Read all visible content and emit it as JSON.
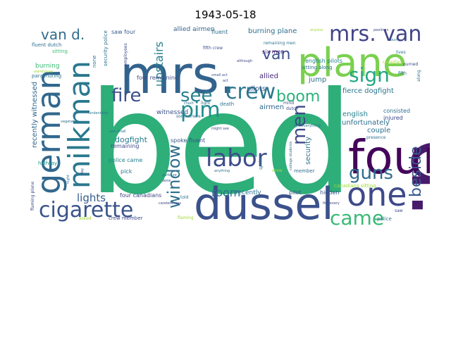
{
  "figure": {
    "title": "1943-05-18"
  },
  "word_cloud": {
    "background": "#ffffff",
    "words": [
      {
        "text": "bed",
        "color": "#2eae79"
      },
      {
        "text": "mrs.",
        "color": "#33638d"
      },
      {
        "text": "d.",
        "color": "#481a6c"
      },
      {
        "text": "plane",
        "color": "#7bd04f"
      },
      {
        "text": "dussel",
        "color": "#3b518b"
      },
      {
        "text": "four",
        "color": "#44055a"
      },
      {
        "text": "german",
        "color": "#31688e"
      },
      {
        "text": "milkman",
        "color": "#2a788e"
      },
      {
        "text": "cigarette",
        "color": "#39548b"
      },
      {
        "text": "one",
        "color": "#3e4a89"
      },
      {
        "text": "crew",
        "color": "#2a778e"
      },
      {
        "text": "pim",
        "color": "#228c8d"
      },
      {
        "text": "fire",
        "color": "#3c4f8a"
      },
      {
        "text": "see",
        "color": "#27808e"
      },
      {
        "text": "labor",
        "color": "#3e4c8a"
      },
      {
        "text": "mrs. van",
        "color": "#414487"
      },
      {
        "text": "sign",
        "color": "#22a785"
      },
      {
        "text": "window",
        "color": "#2e6e8e"
      },
      {
        "text": "van d.",
        "color": "#2f6b8e"
      },
      {
        "text": "boom",
        "color": "#2cb17e"
      },
      {
        "text": "van",
        "color": "#3b528b"
      },
      {
        "text": "men",
        "color": "#3e4a89"
      },
      {
        "text": "guns",
        "color": "#2f6c8e"
      },
      {
        "text": "came",
        "color": "#3aba76"
      },
      {
        "text": "beside",
        "color": "#38598c"
      },
      {
        "text": "upstairs",
        "color": "#277f8e"
      },
      {
        "text": "lights",
        "color": "#355f8d"
      },
      {
        "text": "room",
        "color": "#2c728e"
      },
      {
        "text": "dogfight",
        "color": "#297b8e"
      },
      {
        "text": "fierce dogfight",
        "color": "#2b758e"
      },
      {
        "text": "recently witnessed",
        "color": "#31668e"
      },
      {
        "text": "allied airmen",
        "color": "#34608d"
      },
      {
        "text": "burning plane",
        "color": "#2d708e"
      },
      {
        "text": "saw four",
        "color": "#375a8c"
      },
      {
        "text": "witnessed",
        "color": "#3b528b"
      },
      {
        "text": "unfortunately",
        "color": "#2d708e"
      },
      {
        "text": "english",
        "color": "#26828e"
      },
      {
        "text": "couple",
        "color": "#2c728e"
      },
      {
        "text": "consisted",
        "color": "#2e6e8e"
      },
      {
        "text": "injured",
        "color": "#3e4a89"
      },
      {
        "text": "allied",
        "color": "#472a7a"
      },
      {
        "text": "jump",
        "color": "#2c718e"
      },
      {
        "text": "pilots",
        "color": "#375b8d"
      },
      {
        "text": "airmen",
        "color": "#31688e"
      },
      {
        "text": "security",
        "color": "#2c728e"
      },
      {
        "text": "english pilots",
        "color": "#26828e"
      },
      {
        "text": "six men",
        "color": "#482576"
      },
      {
        "text": "fluent dutch",
        "color": "#2d708e"
      },
      {
        "text": "sitting",
        "color": "#3fbc73"
      },
      {
        "text": "parachuting",
        "color": "#2d708e"
      },
      {
        "text": "burning",
        "color": "#3bbb75"
      },
      {
        "text": "four remaining",
        "color": "#3e4c8a"
      },
      {
        "text": "spoke fluent",
        "color": "#39558c"
      },
      {
        "text": "remaining",
        "color": "#3e4a89"
      },
      {
        "text": "police came",
        "color": "#26828e"
      },
      {
        "text": "pick",
        "color": "#2b758e"
      },
      {
        "text": "four canadians",
        "color": "#414487"
      },
      {
        "text": "recently",
        "color": "#2c728e"
      },
      {
        "text": "pilot",
        "color": "#3b528b"
      },
      {
        "text": "hidden",
        "color": "#3b528b"
      },
      {
        "text": "member",
        "color": "#2d708e"
      },
      {
        "text": "halfway",
        "color": "#1f948c"
      },
      {
        "text": "flaming plane",
        "color": "#3e4a89"
      },
      {
        "text": "crew member",
        "color": "#3e4a89"
      },
      {
        "text": "police",
        "color": "#2c728e"
      },
      {
        "text": "saw",
        "color": "#3e4a89"
      },
      {
        "text": "fluent",
        "color": "#2d708e"
      },
      {
        "text": "fifth crew",
        "color": "#3b528b"
      },
      {
        "text": "security police",
        "color": "#2c728e"
      },
      {
        "text": "none",
        "color": "#2d708e"
      },
      {
        "text": "sitting along",
        "color": "#2c728e"
      },
      {
        "text": "canadians sitting",
        "color": "#a0da39"
      },
      {
        "text": "death",
        "color": "#2c728e"
      },
      {
        "text": "light",
        "color": "#2d708e"
      },
      {
        "text": "mind",
        "color": "#3b528b"
      },
      {
        "text": "dutch",
        "color": "#3e4a89"
      },
      {
        "text": "told",
        "color": "#2c728e"
      },
      {
        "text": "fifth",
        "color": "#2d708e"
      },
      {
        "text": "lives",
        "color": "#2c728e"
      },
      {
        "text": "burned",
        "color": "#3e4a89"
      },
      {
        "text": "along",
        "color": "#2c728e"
      },
      {
        "text": "somewhere",
        "color": "#2d708e"
      },
      {
        "text": "presence",
        "color": "#2c728e"
      },
      {
        "text": "canadians",
        "color": "#a0da39"
      },
      {
        "text": "remaining men",
        "color": "#2c728e"
      },
      {
        "text": "employees",
        "color": "#3e4a89"
      },
      {
        "text": "night",
        "color": "#2c728e"
      },
      {
        "text": "small act",
        "color": "#3b528b"
      },
      {
        "text": "fire every",
        "color": "#3e4a89"
      },
      {
        "text": "anything",
        "color": "#2c728e"
      },
      {
        "text": "drew",
        "color": "#a0da39"
      },
      {
        "text": "done",
        "color": "#3e4a89"
      },
      {
        "text": "spoke",
        "color": "#2c728e"
      },
      {
        "text": "carelessness",
        "color": "#3e4a89"
      },
      {
        "text": "asked",
        "color": "#a0da39"
      },
      {
        "text": "flaming",
        "color": "#a0da39"
      },
      {
        "text": "crash",
        "color": "#2c728e"
      },
      {
        "text": "although",
        "color": "#3e4a89"
      },
      {
        "text": "vegetable",
        "color": "#2c728e"
      },
      {
        "text": "peelings",
        "color": "#3e4a89"
      },
      {
        "text": "garbage",
        "color": "#2c728e"
      },
      {
        "text": "warehouse",
        "color": "#a0da39"
      },
      {
        "text": "undeniably",
        "color": "#2c728e"
      },
      {
        "text": "college students",
        "color": "#2d708e"
      },
      {
        "text": "might see",
        "color": "#3e4a89"
      },
      {
        "text": "see small",
        "color": "#2c728e"
      },
      {
        "text": "day",
        "color": "#3e4a89"
      },
      {
        "text": "burn",
        "color": "#2c728e"
      },
      {
        "text": "anyone",
        "color": "#a0da39"
      },
      {
        "text": "fire everything",
        "color": "#2c728e"
      },
      {
        "text": "act",
        "color": "#3e4a89"
      }
    ]
  }
}
